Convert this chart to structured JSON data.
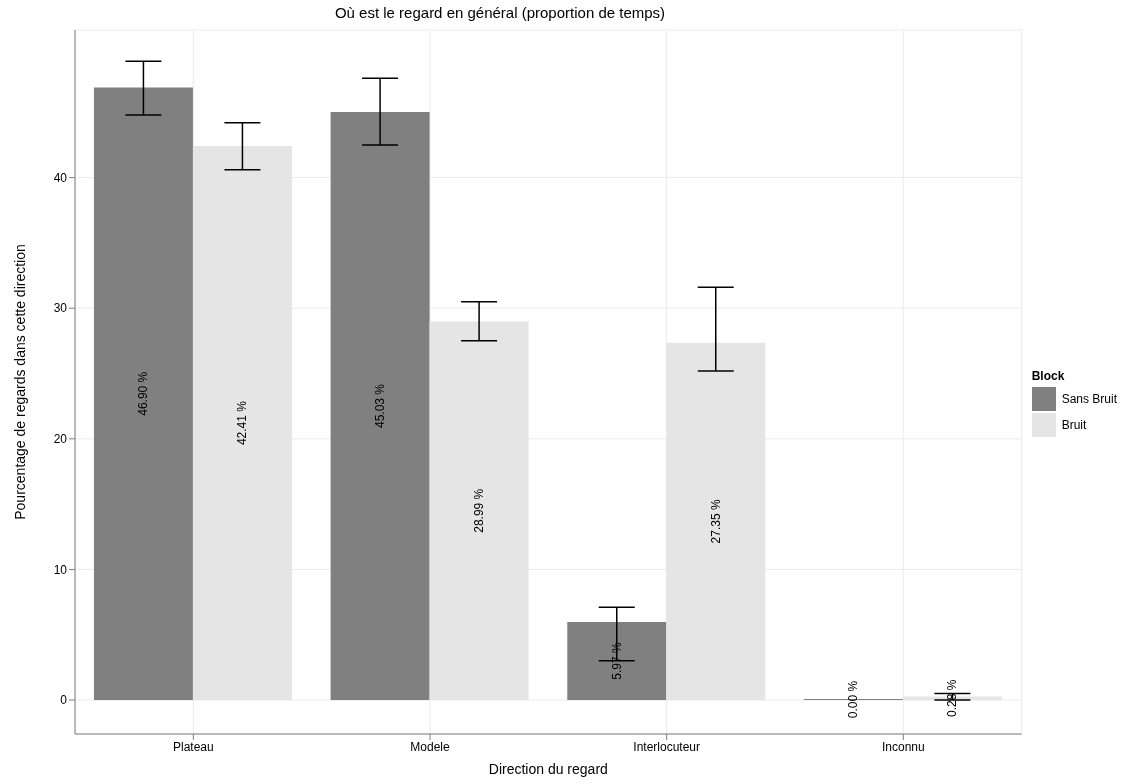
{
  "chart_data": {
    "type": "bar",
    "title": "Où est le regard en général (proportion de temps)",
    "xlabel": "Direction du regard",
    "ylabel": "Pourcentage de regards dans cette direction",
    "legend_title": "Block",
    "categories": [
      "Plateau",
      "Modele",
      "Interlocuteur",
      "Inconnu"
    ],
    "series": [
      {
        "name": "Sans Bruit",
        "color": "#808080",
        "values": [
          46.9,
          45.03,
          5.97,
          0.0
        ],
        "errors": [
          [
            44.8,
            48.9
          ],
          [
            42.5,
            47.6
          ],
          [
            3.0,
            7.1
          ],
          null
        ],
        "value_labels": [
          "46.90 %",
          "45.03 %",
          "5.97 %",
          "0.00 %"
        ]
      },
      {
        "name": "Bruit",
        "color": "#e5e5e5",
        "values": [
          42.41,
          28.99,
          27.35,
          0.28
        ],
        "errors": [
          [
            40.6,
            44.2
          ],
          [
            27.5,
            30.5
          ],
          [
            25.2,
            31.6
          ],
          [
            0.0,
            0.5
          ]
        ],
        "value_labels": [
          "42.41 %",
          "28.99 %",
          "27.35 %",
          "0.28 %"
        ]
      }
    ],
    "ylim": [
      -2.6,
      51.3
    ],
    "yticks": [
      0,
      10,
      20,
      30,
      40
    ],
    "grid": true,
    "legend": "right"
  }
}
